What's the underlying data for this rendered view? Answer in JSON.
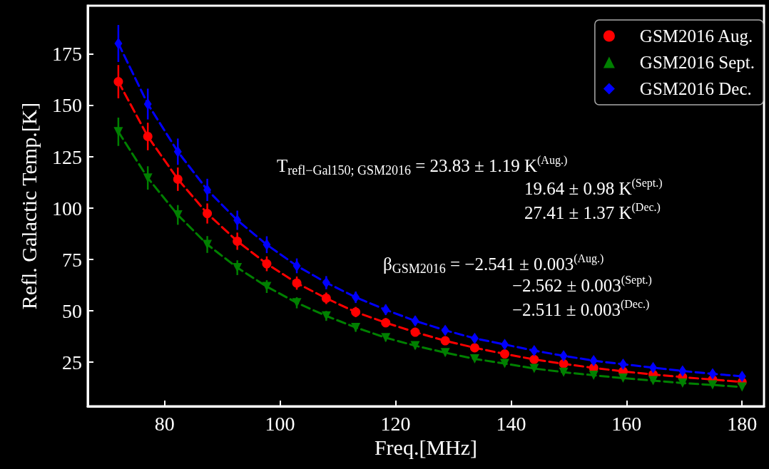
{
  "chart_data": {
    "type": "line",
    "xlabel": "Freq.[MHz]",
    "ylabel": "Refl. Galactic Temp.[K]",
    "x": [
      72,
      77.1,
      82.3,
      87.4,
      92.6,
      97.7,
      102.9,
      108,
      113.1,
      118.3,
      123.4,
      128.6,
      133.7,
      138.9,
      144,
      149.1,
      154.3,
      159.4,
      164.6,
      169.7,
      174.9,
      180
    ],
    "series": [
      {
        "name": "GSM2016 Aug.",
        "color": "#ff0000",
        "marker": "circle",
        "values": [
          161.6,
          134.9,
          114.1,
          97.4,
          83.9,
          72.9,
          63.5,
          56.1,
          49.4,
          44.2,
          39.6,
          35.4,
          32.0,
          29.0,
          26.3,
          24.2,
          22.2,
          20.5,
          19.0,
          17.7,
          16.5,
          15.3
        ],
        "errors": [
          8.1,
          6.7,
          5.7,
          4.9,
          4.2,
          3.6,
          3.2,
          2.8,
          2.5,
          2.2,
          2.0,
          1.8,
          1.6,
          1.5,
          1.3,
          1.2,
          1.1,
          1.0,
          1.0,
          0.9,
          0.8,
          0.8
        ]
      },
      {
        "name": "GSM2016 Sept.",
        "color": "#008000",
        "marker": "triangle",
        "values": [
          137.2,
          114.7,
          96.7,
          82.3,
          71.0,
          61.8,
          53.9,
          47.5,
          41.9,
          36.9,
          33.0,
          29.6,
          26.6,
          24.3,
          21.9,
          20.1,
          18.6,
          17.2,
          16.0,
          14.8,
          13.9,
          12.9
        ],
        "errors": [
          6.9,
          5.7,
          4.8,
          4.1,
          3.6,
          3.1,
          2.7,
          2.4,
          2.1,
          1.8,
          1.7,
          1.5,
          1.3,
          1.2,
          1.1,
          1.0,
          0.9,
          0.9,
          0.8,
          0.7,
          0.7,
          0.6
        ]
      },
      {
        "name": "GSM2016 Dec.",
        "color": "#0000ff",
        "marker": "diamond",
        "values": [
          180.2,
          150.7,
          127.5,
          108.9,
          94.1,
          82.2,
          71.9,
          63.7,
          56.6,
          50.5,
          45.1,
          40.5,
          36.6,
          33.6,
          30.6,
          28.1,
          25.7,
          24.0,
          22.3,
          20.7,
          19.3,
          18.1
        ],
        "errors": [
          9.0,
          7.5,
          6.4,
          5.4,
          4.7,
          4.1,
          3.6,
          3.2,
          2.8,
          2.5,
          2.3,
          2.0,
          1.8,
          1.7,
          1.5,
          1.4,
          1.3,
          1.2,
          1.1,
          1.0,
          1.0,
          0.9
        ]
      }
    ],
    "line_style": "dashed",
    "xlim": [
      66.7,
      183.8
    ],
    "xticks": [
      80,
      100,
      120,
      140,
      160,
      180
    ],
    "ylim": [
      3.5,
      198.6
    ],
    "yticks": [
      25,
      50,
      75,
      100,
      125,
      150,
      175
    ],
    "grid": false,
    "legend": "top right",
    "annotations": [
      "T$_{refl−Gal150; GSM2016}$ = 23.83 ± 1.19 K$^{(Aug.)}$",
      "19.64 ± 0.98 K$^{(Sept.)}$",
      "27.41 ± 1.37 K$^{(Dec.)}$",
      "β$_{GSM2016}$ = −2.541 ± 0.003$^{(Aug.)}$",
      "−2.562 ± 0.003$^{(Sept.)}$",
      "−2.511 ± 0.003$^{(Dec.)}$"
    ]
  }
}
